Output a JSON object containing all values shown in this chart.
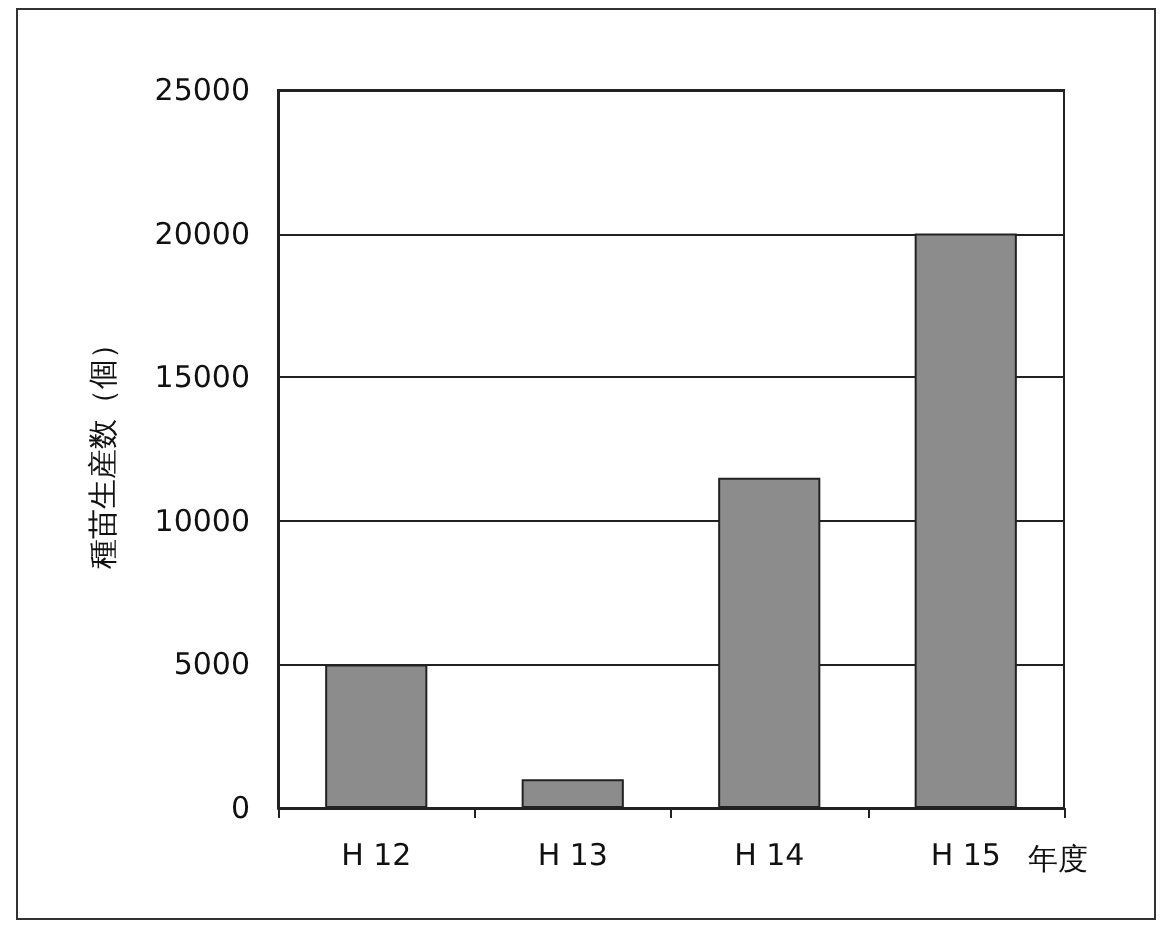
{
  "chart_data": {
    "type": "bar",
    "categories": [
      "H 12",
      "H 13",
      "H 14",
      "H 15"
    ],
    "values": [
      5000,
      1000,
      11500,
      20000
    ],
    "color": "#8c8c8c",
    "xlabel": "年度",
    "ylabel": "種苗生産数（個）",
    "ylim": [
      0,
      25000
    ],
    "yticks": [
      0,
      5000,
      10000,
      15000,
      20000,
      25000
    ],
    "grid": "y"
  }
}
